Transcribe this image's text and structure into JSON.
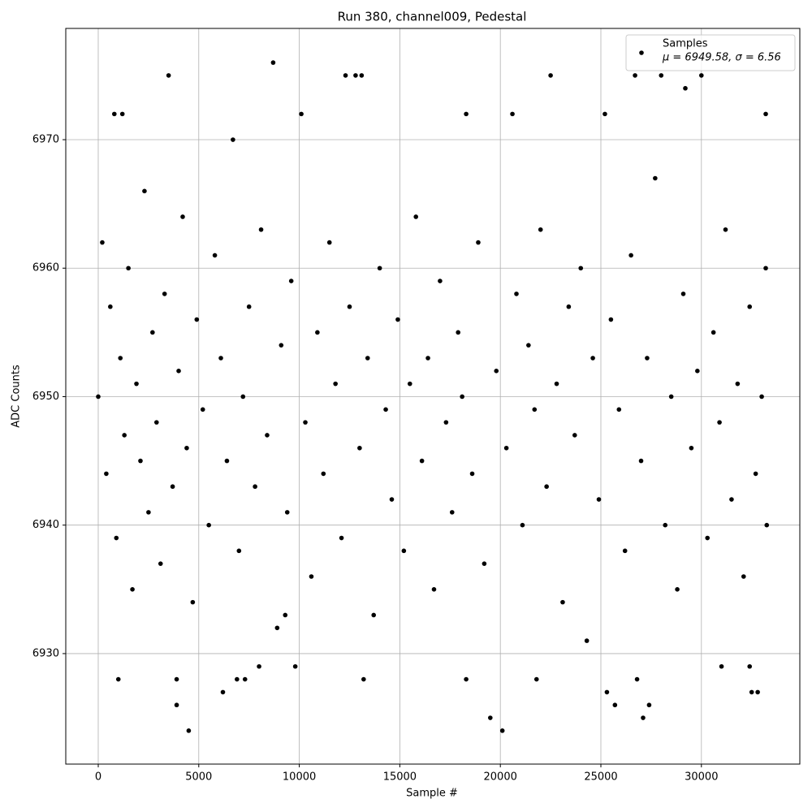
{
  "chart_data": {
    "type": "scatter",
    "title": "Run 380, channel009, Pedestal",
    "x_label": "Sample #",
    "y_label": "ADC Counts",
    "xlim": [
      -1615,
      34895
    ],
    "ylim": [
      6921.4,
      6978.66
    ],
    "xticks": [
      0,
      5000,
      10000,
      15000,
      20000,
      25000,
      30000
    ],
    "yticks": [
      6930,
      6940,
      6950,
      6960,
      6970
    ],
    "grid": true,
    "legend": "upper right",
    "legend_stats": "μ = 6949.58, σ = 6.56",
    "series": [
      {
        "name": "Samples",
        "color": "#000000",
        "x": [
          3500,
          8700,
          12300,
          12800,
          13100,
          22500,
          26700,
          28000,
          29200,
          30000,
          800,
          1200,
          10100,
          18300,
          20600,
          25200,
          33200,
          4500,
          20100,
          19500,
          27100,
          3900,
          25700,
          27400,
          6200,
          25300,
          32500,
          32800,
          1000,
          3900,
          6900,
          7300,
          13200,
          18300,
          21800,
          26800,
          8000,
          9800,
          31000,
          32400,
          9300,
          0,
          200,
          400,
          600,
          900,
          1100,
          1300,
          1500,
          1700,
          1900,
          2100,
          2300,
          2500,
          2700,
          2900,
          3100,
          3300,
          3700,
          4000,
          4200,
          4400,
          4700,
          4900,
          5200,
          5500,
          5800,
          6100,
          6400,
          6700,
          7000,
          7200,
          7500,
          7800,
          8100,
          8400,
          8900,
          9100,
          9400,
          9600,
          10300,
          10600,
          10900,
          11200,
          11500,
          11800,
          12100,
          12500,
          13000,
          13400,
          13700,
          14000,
          14300,
          14600,
          14900,
          15200,
          15500,
          15800,
          16100,
          16400,
          16700,
          17000,
          17300,
          17600,
          17900,
          18100,
          18600,
          18900,
          19200,
          19800,
          20300,
          20800,
          21100,
          21400,
          21700,
          22000,
          22300,
          22800,
          23100,
          23400,
          23700,
          24000,
          24300,
          24600,
          24900,
          25500,
          25900,
          26200,
          26500,
          27000,
          27300,
          27700,
          28200,
          28500,
          28800,
          29100,
          29500,
          29800,
          30300,
          30600,
          30900,
          31200,
          31500,
          31800,
          32100,
          32400,
          32700,
          33000,
          33200,
          33250
        ],
        "values": [
          6975,
          6976,
          6975,
          6975,
          6975,
          6975,
          6975,
          6975,
          6974,
          6975,
          6972,
          6972,
          6972,
          6972,
          6972,
          6972,
          6972,
          6924,
          6924,
          6925,
          6925,
          6926,
          6926,
          6926,
          6927,
          6927,
          6927,
          6927,
          6928,
          6928,
          6928,
          6928,
          6928,
          6928,
          6928,
          6928,
          6929,
          6929,
          6929,
          6929,
          6933,
          6950,
          6962,
          6944,
          6957,
          6939,
          6953,
          6947,
          6960,
          6935,
          6951,
          6945,
          6966,
          6941,
          6955,
          6948,
          6937,
          6958,
          6943,
          6952,
          6964,
          6946,
          6934,
          6956,
          6949,
          6940,
          6961,
          6953,
          6945,
          6970,
          6938,
          6950,
          6957,
          6943,
          6963,
          6947,
          6932,
          6954,
          6941,
          6959,
          6948,
          6936,
          6955,
          6944,
          6962,
          6951,
          6939,
          6957,
          6946,
          6953,
          6933,
          6960,
          6949,
          6942,
          6956,
          6938,
          6951,
          6964,
          6945,
          6953,
          6935,
          6959,
          6948,
          6941,
          6955,
          6950,
          6944,
          6962,
          6937,
          6952,
          6946,
          6958,
          6940,
          6954,
          6949,
          6963,
          6943,
          6951,
          6934,
          6957,
          6947,
          6960,
          6931,
          6953,
          6942,
          6956,
          6949,
          6938,
          6961,
          6945,
          6953,
          6967,
          6940,
          6950,
          6935,
          6958,
          6946,
          6952,
          6939,
          6955,
          6948,
          6963,
          6942,
          6951,
          6936,
          6957,
          6944,
          6950,
          6960,
          6940
        ]
      }
    ]
  }
}
